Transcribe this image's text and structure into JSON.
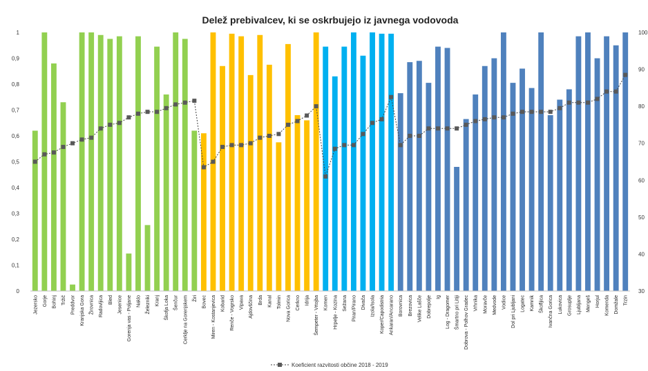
{
  "chart_data": {
    "type": "bar",
    "title": "Delež prebivalcev, ki se oskrbujejo iz javnega vodovoda",
    "xlabel": "",
    "ylabel": "",
    "ylim": [
      0,
      1
    ],
    "y2lim": [
      30,
      100
    ],
    "yticks": [
      "0",
      "0,1",
      "0,2",
      "0,3",
      "0,4",
      "0,5",
      "0,6",
      "0,7",
      "0,8",
      "0,9",
      "1"
    ],
    "y2ticks": [
      "30",
      "40",
      "50",
      "60",
      "70",
      "80",
      "90",
      "100"
    ],
    "grid": false,
    "legend_position": "bottom",
    "colors": {
      "group1": "#92d050",
      "group2": "#ffc000",
      "group3": "#00b0f0",
      "group4": "#4f81bd",
      "line": "#404040",
      "marker": "#595959"
    },
    "categories": [
      "Jezersko",
      "Gorje",
      "Bohinj",
      "Tržič",
      "Preddvor",
      "Kranjska Gora",
      "Žirovnica",
      "Radovljica",
      "Bled",
      "Jesenice",
      "Gorenja vas - Poljane",
      "Naklo",
      "Železniki",
      "Kranj",
      "Škofja Loka",
      "Šenčur",
      "Cerklje na Gorenjskem",
      "Žiri",
      "Bovec",
      "Miren - Kostanjevica",
      "Kobarid",
      "Renče - Vogrsko",
      "Vipava",
      "Ajdovščina",
      "Brda",
      "Kanal",
      "Tolmin",
      "Nova Gorica",
      "Cerkno",
      "Idrija",
      "Šempeter - Vrtojba",
      "Komen",
      "Hrpelje - Kozina",
      "Sežana",
      "Piran/Pirano",
      "Divača",
      "Izola/Isola",
      "Koper/Capodistria",
      "Ankaran/Ancarano",
      "Borovnica",
      "Brezovica",
      "Velike Lašče",
      "Dobrepolje",
      "Ig",
      "Log - Dragomer",
      "Šmartno pri Litiji",
      "Dobrova - Polhov Gradec",
      "Vrhnika",
      "Moravče",
      "Medvode",
      "Vodice",
      "Dol pri Ljubljani",
      "Logatec",
      "Kamnik",
      "Škofljica",
      "Ivančna Gorica",
      "Lukovica",
      "Grosuplje",
      "Ljubljana",
      "Mengeš",
      "Horjul",
      "Komenda",
      "Domžale",
      "Trzin"
    ],
    "groups": [
      0,
      0,
      0,
      0,
      0,
      0,
      0,
      0,
      0,
      0,
      0,
      0,
      0,
      0,
      0,
      0,
      0,
      0,
      1,
      1,
      1,
      1,
      1,
      1,
      1,
      1,
      1,
      1,
      1,
      1,
      1,
      2,
      2,
      2,
      2,
      2,
      2,
      2,
      2,
      3,
      3,
      3,
      3,
      3,
      3,
      3,
      3,
      3,
      3,
      3,
      3,
      3,
      3,
      3,
      3,
      3,
      3,
      3,
      3,
      3,
      3,
      3,
      3,
      3
    ],
    "series": [
      {
        "name": "",
        "axis": "left",
        "values": [
          0.62,
          1.0,
          0.88,
          0.73,
          0.025,
          1.0,
          1.0,
          0.99,
          0.975,
          0.985,
          0.145,
          0.985,
          0.255,
          0.945,
          0.76,
          1.0,
          0.975,
          0.62,
          0.61,
          1.0,
          0.87,
          0.995,
          0.985,
          0.835,
          0.99,
          0.875,
          0.575,
          0.955,
          0.68,
          0.66,
          1.0,
          0.945,
          0.83,
          0.945,
          1.0,
          0.91,
          1.0,
          0.995,
          0.995,
          0.765,
          0.885,
          0.89,
          0.805,
          0.945,
          0.94,
          0.48,
          0.665,
          0.76,
          0.87,
          0.9,
          1.0,
          0.805,
          0.86,
          0.785,
          1.0,
          0.68,
          0.74,
          0.78,
          0.985,
          1.0,
          0.9,
          0.985,
          0.95,
          1.0
        ]
      },
      {
        "name": "Koeficient razvitosti občine 2018 - 2019",
        "type": "line",
        "axis": "right",
        "values": [
          65,
          67,
          67.5,
          69,
          70,
          71,
          71.5,
          74,
          75,
          75.5,
          77,
          78,
          78.5,
          78.5,
          79.5,
          80.5,
          81,
          81.5,
          63.5,
          65,
          69,
          69.5,
          69.5,
          70,
          71.5,
          72,
          72.5,
          75,
          76,
          77.5,
          80,
          61,
          68.5,
          69.5,
          69.5,
          72.5,
          75.5,
          76.5,
          82.5,
          69.5,
          72,
          72,
          74,
          74,
          74,
          74,
          75,
          76,
          76.5,
          77,
          77,
          78,
          78.5,
          78.5,
          78.5,
          78.5,
          79.5,
          81,
          81,
          81,
          82,
          84,
          84,
          88.5
        ]
      }
    ]
  }
}
